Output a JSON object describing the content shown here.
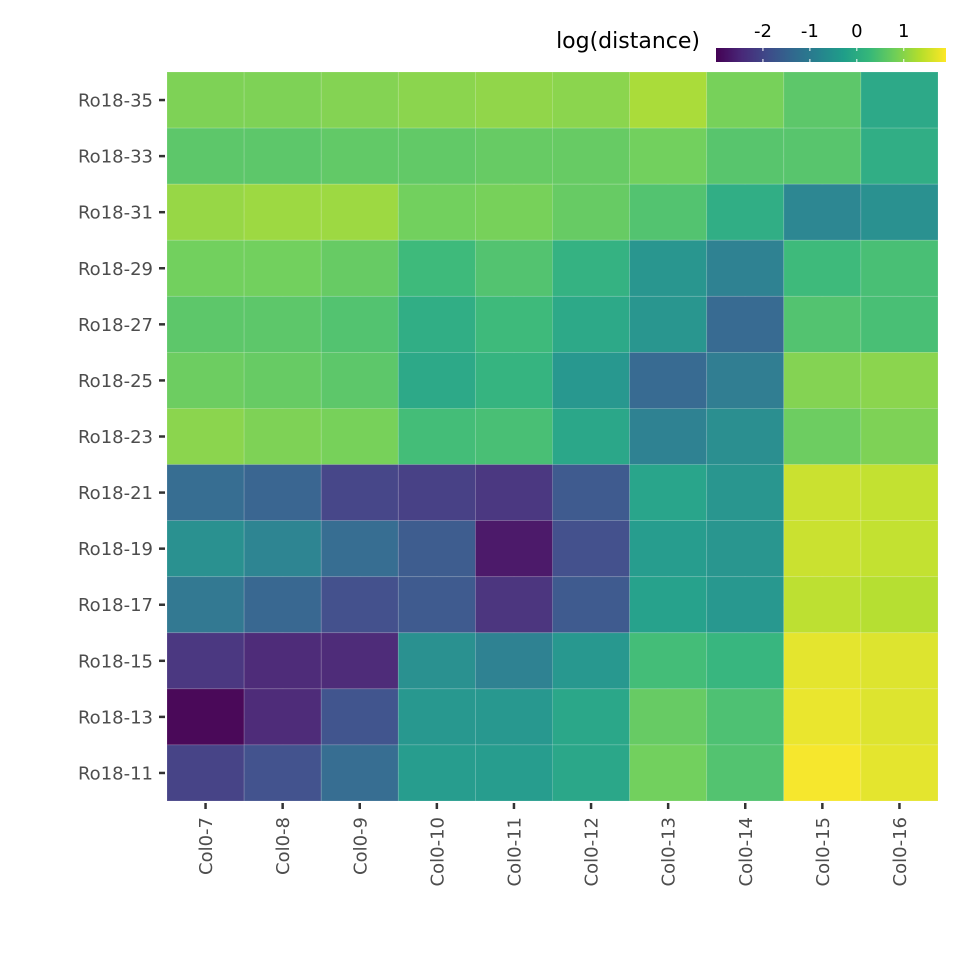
{
  "chart_data": {
    "type": "heatmap",
    "title": "",
    "xlabel": "",
    "ylabel": "",
    "x_categories": [
      "Col0-7",
      "Col0-8",
      "Col0-9",
      "Col0-10",
      "Col0-11",
      "Col0-12",
      "Col0-13",
      "Col0-14",
      "Col0-15",
      "Col0-16"
    ],
    "y_categories": [
      "Ro18-35",
      "Ro18-33",
      "Ro18-31",
      "Ro18-29",
      "Ro18-27",
      "Ro18-25",
      "Ro18-23",
      "Ro18-21",
      "Ro18-19",
      "Ro18-17",
      "Ro18-15",
      "Ro18-13",
      "Ro18-11"
    ],
    "values": [
      [
        0.9,
        0.9,
        0.95,
        1.0,
        1.05,
        1.0,
        1.25,
        0.85,
        0.6,
        -0.1
      ],
      [
        0.6,
        0.6,
        0.65,
        0.65,
        0.7,
        0.7,
        0.8,
        0.55,
        0.55,
        0.0
      ],
      [
        1.1,
        1.15,
        1.15,
        0.8,
        0.85,
        0.7,
        0.5,
        0.0,
        -0.8,
        -0.6
      ],
      [
        0.8,
        0.8,
        0.7,
        0.3,
        0.5,
        0.1,
        -0.5,
        -0.9,
        0.3,
        0.4
      ],
      [
        0.6,
        0.6,
        0.5,
        0.0,
        0.3,
        -0.1,
        -0.5,
        -1.4,
        0.5,
        0.4
      ],
      [
        0.75,
        0.7,
        0.6,
        -0.1,
        0.15,
        -0.45,
        -1.4,
        -1.0,
        0.95,
        1.0
      ],
      [
        1.0,
        0.9,
        0.85,
        0.35,
        0.4,
        -0.15,
        -0.9,
        -0.65,
        0.75,
        0.9
      ],
      [
        -1.35,
        -1.5,
        -2.05,
        -2.15,
        -2.3,
        -1.7,
        -0.2,
        -0.5,
        1.5,
        1.45
      ],
      [
        -0.6,
        -0.85,
        -1.35,
        -1.65,
        -2.75,
        -1.9,
        -0.35,
        -0.5,
        1.5,
        1.45
      ],
      [
        -1.1,
        -1.45,
        -1.9,
        -1.7,
        -2.35,
        -1.7,
        -0.25,
        -0.45,
        1.4,
        1.35
      ],
      [
        -2.3,
        -2.5,
        -2.5,
        -0.6,
        -0.9,
        -0.45,
        0.35,
        0.2,
        1.7,
        1.65
      ],
      [
        -3.0,
        -2.5,
        -1.8,
        -0.45,
        -0.45,
        -0.15,
        0.7,
        0.45,
        1.75,
        1.65
      ],
      [
        -2.1,
        -1.85,
        -1.35,
        -0.35,
        -0.35,
        -0.15,
        0.8,
        0.5,
        1.85,
        1.7
      ]
    ],
    "colorbar": {
      "title": "log(distance)",
      "ticks": [
        -2,
        -1,
        0,
        1
      ],
      "tick_labels": [
        "-2",
        "-1",
        "0",
        "1"
      ],
      "range": [
        -3.0,
        1.9
      ],
      "palette": "viridis",
      "placement": "top-right"
    },
    "grid": true
  }
}
